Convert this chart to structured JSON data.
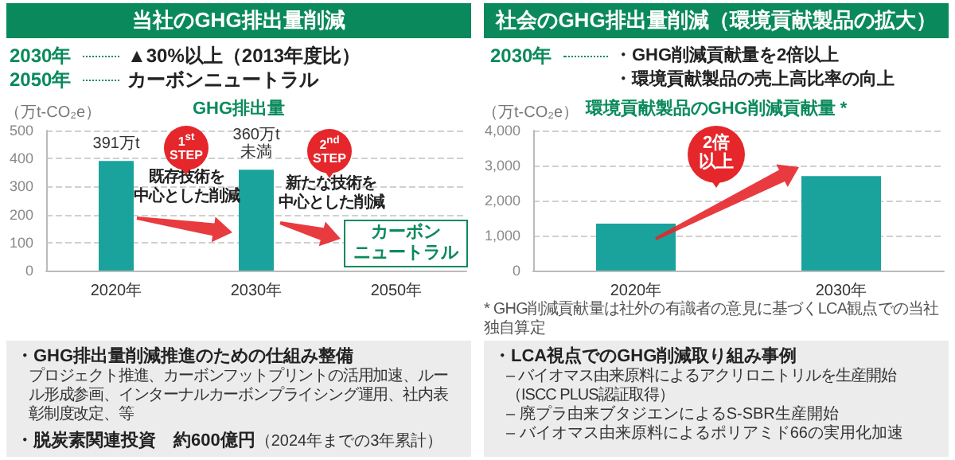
{
  "chart_data": [
    {
      "type": "bar",
      "title": "当社のGHG排出量削減",
      "subtitle": "GHG排出量",
      "ylabel": "（万t-CO₂e）",
      "categories": [
        "2020年",
        "2030年",
        "2050年"
      ],
      "values": [
        391,
        360,
        null
      ],
      "color": "#1aa39c",
      "value_labels": [
        "391万t",
        "360万t\n未満",
        null
      ],
      "ylim": [
        0,
        500
      ],
      "yticks": [
        0,
        100,
        200,
        300,
        400,
        500
      ],
      "grid": "y",
      "annotations": [
        "2030年",
        "▲30%以上（2013年度比）",
        "2050年",
        "カーボンニュートラル",
        "1$^{st}$ STEP",
        "既存技術を中心とした削減",
        "2$^{nd}$ STEP",
        "新たな技術を中心とした削減",
        "カーボンニュートラル",
        "・GHG排出量削減推進のための仕組み整備",
        "プロジェクト推進、カーボンフットプリントの活用加速、ルール形成参画、インターナルカーボンプライシング運用、社内表彰制度改定、等",
        "・脱炭素関連投資　約600億円",
        "（2024年までの3年累計）"
      ]
    },
    {
      "type": "bar",
      "title": "社会のGHG排出量削減（環境貢献製品の拡大）",
      "subtitle": "環境貢献製品のGHG削減貢献量 *",
      "ylabel": "（万t-CO₂e）",
      "categories": [
        "2020年",
        "2030年"
      ],
      "values": [
        1340,
        2700
      ],
      "color": "#1aa39c",
      "ylim": [
        0,
        4000
      ],
      "yticks": [
        0,
        {
          "value": 1000,
          "label": "1,000"
        },
        {
          "value": 2000,
          "label": "2,000"
        },
        {
          "value": 3000,
          "label": "3,000"
        },
        {
          "value": 4000,
          "label": "4,000"
        }
      ],
      "grid": "y",
      "annotations": [
        "2030年",
        "・GHG削減貢献量を2倍以上",
        "・環境貢献製品の売上高比率の向上",
        "2倍以上",
        "* GHG削減貢献量は社外の有識者の意見に基づくLCA観点での当社独自算定",
        "・LCA視点でのGHG削減取り組み事例",
        "– バイオマス由来原料によるアクリロニトリルを生産開始（ISCC PLUS認証取得）",
        "– 廃プラ由来ブタジエンによるS-SBR生産開始",
        "– バイオマス由来原料によるポリアミド66の実用化加速"
      ]
    }
  ]
}
